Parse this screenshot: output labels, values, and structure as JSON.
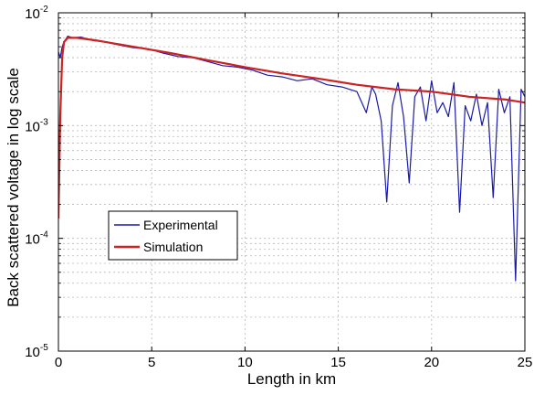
{
  "chart_data": {
    "type": "line",
    "title": "",
    "xlabel": "Length in km",
    "ylabel": "Back scattered voltage in log scale",
    "xlim": [
      0,
      25
    ],
    "ylim": [
      1e-05,
      0.01
    ],
    "yscale": "log",
    "grid": true,
    "legend_position": "middle-left",
    "x_ticks": [
      {
        "value": 0,
        "label": "0"
      },
      {
        "value": 5,
        "label": "5"
      },
      {
        "value": 10,
        "label": "10"
      },
      {
        "value": 15,
        "label": "15"
      },
      {
        "value": 20,
        "label": "20"
      },
      {
        "value": 25,
        "label": "25"
      }
    ],
    "y_ticks": [
      {
        "value": 1e-05,
        "base": "10",
        "exp": "-5"
      },
      {
        "value": 0.0001,
        "base": "10",
        "exp": "-4"
      },
      {
        "value": 0.001,
        "base": "10",
        "exp": "-3"
      },
      {
        "value": 0.01,
        "base": "10",
        "exp": "-2"
      }
    ],
    "series": [
      {
        "name": "Experimental",
        "color": "#1a1aa8",
        "x": [
          0,
          0.1,
          0.2,
          0.3,
          0.5,
          0.8,
          1.2,
          1.8,
          2.5,
          3.2,
          4.0,
          4.8,
          5.6,
          6.4,
          7.2,
          8.0,
          8.8,
          9.6,
          10.4,
          11.2,
          12.0,
          12.8,
          13.6,
          14.4,
          15.2,
          16.0,
          16.5,
          16.8,
          17.0,
          17.3,
          17.6,
          17.9,
          18.2,
          18.5,
          18.8,
          19.1,
          19.4,
          19.7,
          20.0,
          20.3,
          20.6,
          20.9,
          21.2,
          21.5,
          21.8,
          22.1,
          22.4,
          22.7,
          23.0,
          23.3,
          23.6,
          23.9,
          24.2,
          24.5,
          24.8,
          25.0
        ],
        "values": [
          0.0045,
          0.004,
          0.005,
          0.0055,
          0.0062,
          0.006,
          0.0061,
          0.0057,
          0.0055,
          0.0052,
          0.0049,
          0.0048,
          0.0044,
          0.0041,
          0.004,
          0.0037,
          0.0034,
          0.0033,
          0.0031,
          0.0028,
          0.0027,
          0.0025,
          0.0026,
          0.0023,
          0.0022,
          0.002,
          0.0013,
          0.0022,
          0.0019,
          0.0011,
          0.00021,
          0.0015,
          0.0024,
          0.0012,
          0.00031,
          0.0018,
          0.0022,
          0.0011,
          0.0025,
          0.0013,
          0.0016,
          0.0012,
          0.0024,
          0.00017,
          0.0015,
          0.0011,
          0.0019,
          0.001,
          0.0016,
          0.00023,
          0.0021,
          0.0013,
          0.0018,
          4.2e-05,
          0.0021,
          0.0018
        ]
      },
      {
        "name": "Simulation",
        "color": "#cc2222",
        "x": [
          0,
          0.1,
          0.2,
          0.3,
          0.5,
          1,
          2,
          4,
          6,
          8,
          10,
          12,
          14,
          16,
          18,
          20,
          22,
          24,
          25
        ],
        "values": [
          0.00015,
          0.0012,
          0.004,
          0.0055,
          0.006,
          0.006,
          0.0057,
          0.005,
          0.0044,
          0.0038,
          0.0033,
          0.0029,
          0.0026,
          0.0023,
          0.0021,
          0.002,
          0.0018,
          0.0017,
          0.0016
        ]
      }
    ]
  }
}
